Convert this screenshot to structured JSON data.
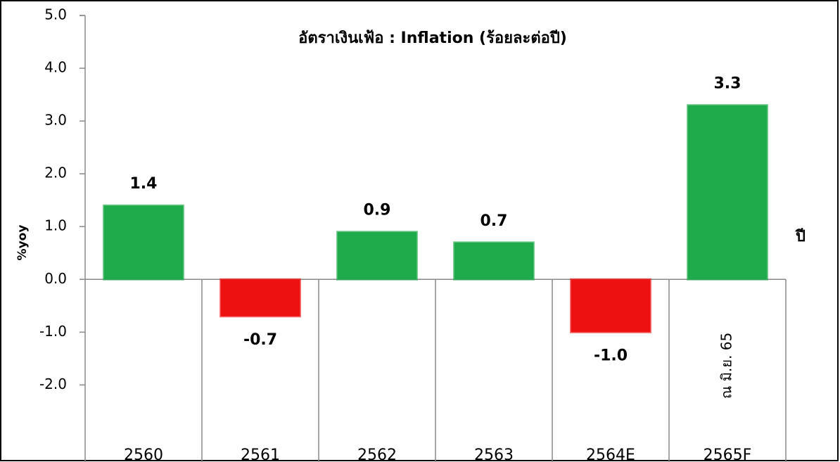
{
  "chart_data": {
    "type": "bar",
    "title": "อัตราเงินเฟ้อ : Inflation (ร้อยละต่อปี)",
    "y_label": "%yoy",
    "x_label": "ปี",
    "annotation": "ณ มิ.ย. 65",
    "categories": [
      "2560",
      "2561",
      "2562",
      "2563",
      "2564E",
      "2565F"
    ],
    "values": [
      1.4,
      -0.7,
      0.9,
      0.7,
      -1.0,
      3.3
    ],
    "value_labels": [
      "1.4",
      "-0.7",
      "0.9",
      "0.7",
      "-1.0",
      "3.3"
    ],
    "colors": [
      "#1faa4b",
      "#ee1111",
      "#1faa4b",
      "#1faa4b",
      "#ee1111",
      "#1faa4b"
    ],
    "ylim": [
      -3.5,
      5.0
    ],
    "yticks": [
      {
        "value": -2,
        "label": "-2.0"
      },
      {
        "value": -1,
        "label": "-1.0"
      },
      {
        "value": 0,
        "label": "0.0"
      },
      {
        "value": 1,
        "label": "1.0"
      },
      {
        "value": 2,
        "label": "2.0"
      },
      {
        "value": 3,
        "label": "3.0"
      },
      {
        "value": 4,
        "label": "4.0"
      },
      {
        "value": 5,
        "label": "5.0"
      }
    ]
  }
}
